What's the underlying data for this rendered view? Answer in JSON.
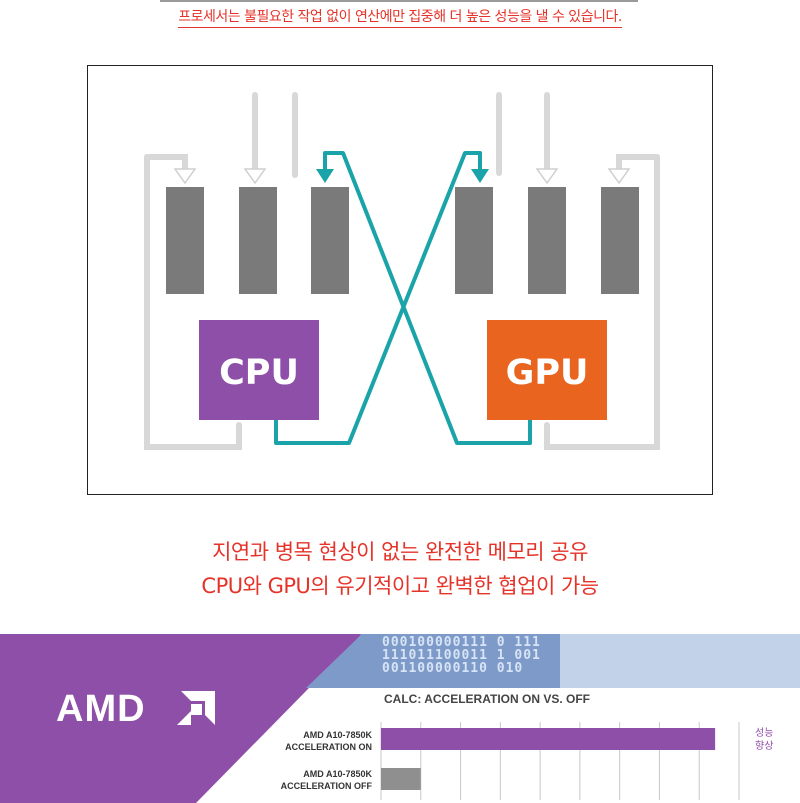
{
  "top_caption": "프로세서는 불필요한 작업 없이 연산에만 집중해 더 높은 성능을 낼 수 있습니다.",
  "diagram": {
    "cpu_label": "CPU",
    "gpu_label": "GPU",
    "colors": {
      "cpu": "#8e4fa8",
      "gpu": "#e8641f",
      "link": "#1aa3a8",
      "block": "#7a7a7a"
    }
  },
  "mid_caption": {
    "line1": "지연과 병목 현상이 없는 완전한 메모리 공유",
    "line2": "CPU와 GPU의 유기적이고 완벽한 협업이 가능"
  },
  "banner": {
    "logo_text": "AMD",
    "binary_lines": [
      "000100000111 0  111",
      "111011100011  1 001",
      "001100000110    010"
    ],
    "chart_title": "CALC: ACCELERATION ON VS. OFF",
    "rows": [
      {
        "label_line1": "AMD A10-7850K",
        "label_line2": "ACCELERATION ON"
      },
      {
        "label_line1": "AMD A10-7850K",
        "label_line2": "ACCELERATION OFF"
      }
    ],
    "perf_note_line1": "성능",
    "perf_note_line2": "향상"
  },
  "chart_data": {
    "type": "bar",
    "title": "CALC: ACCELERATION ON VS. OFF",
    "categories": [
      "AMD A10-7850K ACCELERATION ON",
      "AMD A10-7850K ACCELERATION OFF"
    ],
    "values": [
      8.4,
      1.0
    ],
    "grid": true,
    "colors": [
      "#8e4fa8",
      "#8f8f8f"
    ]
  }
}
